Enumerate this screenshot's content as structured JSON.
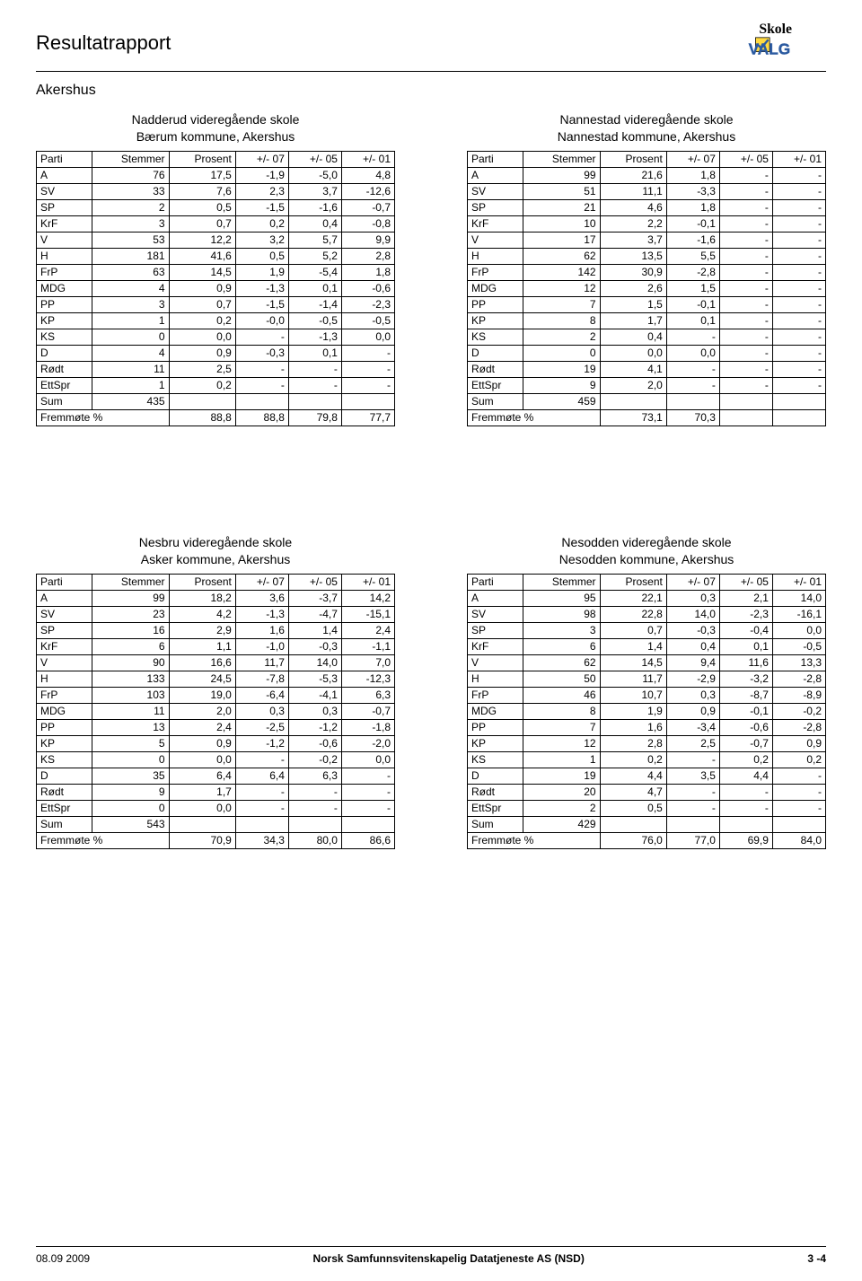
{
  "page_title": "Resultatrapport",
  "region": "Akershus",
  "logo_text_top": "Skole",
  "logo_text_bottom": "VALG",
  "columns": [
    "Parti",
    "Stemmer",
    "Prosent",
    "+/- 07",
    "+/- 05",
    "+/- 01"
  ],
  "parties": [
    "A",
    "SV",
    "SP",
    "KrF",
    "V",
    "H",
    "FrP",
    "MDG",
    "PP",
    "KP",
    "KS",
    "D",
    "Rødt",
    "EttSpr"
  ],
  "sum_label": "Sum",
  "turnout_label": "Fremmøte %",
  "tables": [
    {
      "school": "Nadderud videregående skole",
      "municipality": "Bærum kommune, Akershus",
      "rows": [
        [
          "76",
          "17,5",
          "-1,9",
          "-5,0",
          "4,8"
        ],
        [
          "33",
          "7,6",
          "2,3",
          "3,7",
          "-12,6"
        ],
        [
          "2",
          "0,5",
          "-1,5",
          "-1,6",
          "-0,7"
        ],
        [
          "3",
          "0,7",
          "0,2",
          "0,4",
          "-0,8"
        ],
        [
          "53",
          "12,2",
          "3,2",
          "5,7",
          "9,9"
        ],
        [
          "181",
          "41,6",
          "0,5",
          "5,2",
          "2,8"
        ],
        [
          "63",
          "14,5",
          "1,9",
          "-5,4",
          "1,8"
        ],
        [
          "4",
          "0,9",
          "-1,3",
          "0,1",
          "-0,6"
        ],
        [
          "3",
          "0,7",
          "-1,5",
          "-1,4",
          "-2,3"
        ],
        [
          "1",
          "0,2",
          "-0,0",
          "-0,5",
          "-0,5"
        ],
        [
          "0",
          "0,0",
          "-",
          "-1,3",
          "0,0"
        ],
        [
          "4",
          "0,9",
          "-0,3",
          "0,1",
          "-"
        ],
        [
          "11",
          "2,5",
          "-",
          "-",
          "-"
        ],
        [
          "1",
          "0,2",
          "-",
          "-",
          "-"
        ]
      ],
      "sum": "435",
      "turnout": [
        "88,8",
        "88,8",
        "79,8",
        "77,7"
      ]
    },
    {
      "school": "Nannestad videregående skole",
      "municipality": "Nannestad kommune, Akershus",
      "rows": [
        [
          "99",
          "21,6",
          "1,8",
          "-",
          "-"
        ],
        [
          "51",
          "11,1",
          "-3,3",
          "-",
          "-"
        ],
        [
          "21",
          "4,6",
          "1,8",
          "-",
          "-"
        ],
        [
          "10",
          "2,2",
          "-0,1",
          "-",
          "-"
        ],
        [
          "17",
          "3,7",
          "-1,6",
          "-",
          "-"
        ],
        [
          "62",
          "13,5",
          "5,5",
          "-",
          "-"
        ],
        [
          "142",
          "30,9",
          "-2,8",
          "-",
          "-"
        ],
        [
          "12",
          "2,6",
          "1,5",
          "-",
          "-"
        ],
        [
          "7",
          "1,5",
          "-0,1",
          "-",
          "-"
        ],
        [
          "8",
          "1,7",
          "0,1",
          "-",
          "-"
        ],
        [
          "2",
          "0,4",
          "-",
          "-",
          "-"
        ],
        [
          "0",
          "0,0",
          "0,0",
          "-",
          "-"
        ],
        [
          "19",
          "4,1",
          "-",
          "-",
          "-"
        ],
        [
          "9",
          "2,0",
          "-",
          "-",
          "-"
        ]
      ],
      "sum": "459",
      "turnout": [
        "73,1",
        "70,3",
        "",
        ""
      ]
    },
    {
      "school": "Nesbru videregående skole",
      "municipality": "Asker kommune, Akershus",
      "rows": [
        [
          "99",
          "18,2",
          "3,6",
          "-3,7",
          "14,2"
        ],
        [
          "23",
          "4,2",
          "-1,3",
          "-4,7",
          "-15,1"
        ],
        [
          "16",
          "2,9",
          "1,6",
          "1,4",
          "2,4"
        ],
        [
          "6",
          "1,1",
          "-1,0",
          "-0,3",
          "-1,1"
        ],
        [
          "90",
          "16,6",
          "11,7",
          "14,0",
          "7,0"
        ],
        [
          "133",
          "24,5",
          "-7,8",
          "-5,3",
          "-12,3"
        ],
        [
          "103",
          "19,0",
          "-6,4",
          "-4,1",
          "6,3"
        ],
        [
          "11",
          "2,0",
          "0,3",
          "0,3",
          "-0,7"
        ],
        [
          "13",
          "2,4",
          "-2,5",
          "-1,2",
          "-1,8"
        ],
        [
          "5",
          "0,9",
          "-1,2",
          "-0,6",
          "-2,0"
        ],
        [
          "0",
          "0,0",
          "-",
          "-0,2",
          "0,0"
        ],
        [
          "35",
          "6,4",
          "6,4",
          "6,3",
          "-"
        ],
        [
          "9",
          "1,7",
          "-",
          "-",
          "-"
        ],
        [
          "0",
          "0,0",
          "-",
          "-",
          "-"
        ]
      ],
      "sum": "543",
      "turnout": [
        "70,9",
        "34,3",
        "80,0",
        "86,6"
      ]
    },
    {
      "school": "Nesodden videregående skole",
      "municipality": "Nesodden kommune, Akershus",
      "rows": [
        [
          "95",
          "22,1",
          "0,3",
          "2,1",
          "14,0"
        ],
        [
          "98",
          "22,8",
          "14,0",
          "-2,3",
          "-16,1"
        ],
        [
          "3",
          "0,7",
          "-0,3",
          "-0,4",
          "0,0"
        ],
        [
          "6",
          "1,4",
          "0,4",
          "0,1",
          "-0,5"
        ],
        [
          "62",
          "14,5",
          "9,4",
          "11,6",
          "13,3"
        ],
        [
          "50",
          "11,7",
          "-2,9",
          "-3,2",
          "-2,8"
        ],
        [
          "46",
          "10,7",
          "0,3",
          "-8,7",
          "-8,9"
        ],
        [
          "8",
          "1,9",
          "0,9",
          "-0,1",
          "-0,2"
        ],
        [
          "7",
          "1,6",
          "-3,4",
          "-0,6",
          "-2,8"
        ],
        [
          "12",
          "2,8",
          "2,5",
          "-0,7",
          "0,9"
        ],
        [
          "1",
          "0,2",
          "-",
          "0,2",
          "0,2"
        ],
        [
          "19",
          "4,4",
          "3,5",
          "4,4",
          "-"
        ],
        [
          "20",
          "4,7",
          "-",
          "-",
          "-"
        ],
        [
          "2",
          "0,5",
          "-",
          "-",
          "-"
        ]
      ],
      "sum": "429",
      "turnout": [
        "76,0",
        "77,0",
        "69,9",
        "84,0"
      ]
    }
  ],
  "footer": {
    "date": "08.09 2009",
    "org": "Norsk Samfunnsvitenskapelig Datatjeneste AS (NSD)",
    "page": "3 -4"
  },
  "colors": {
    "text": "#000000",
    "background": "#ffffff",
    "border": "#000000",
    "logo_yellow": "#ffd940",
    "logo_blue": "#2b5aa0"
  }
}
